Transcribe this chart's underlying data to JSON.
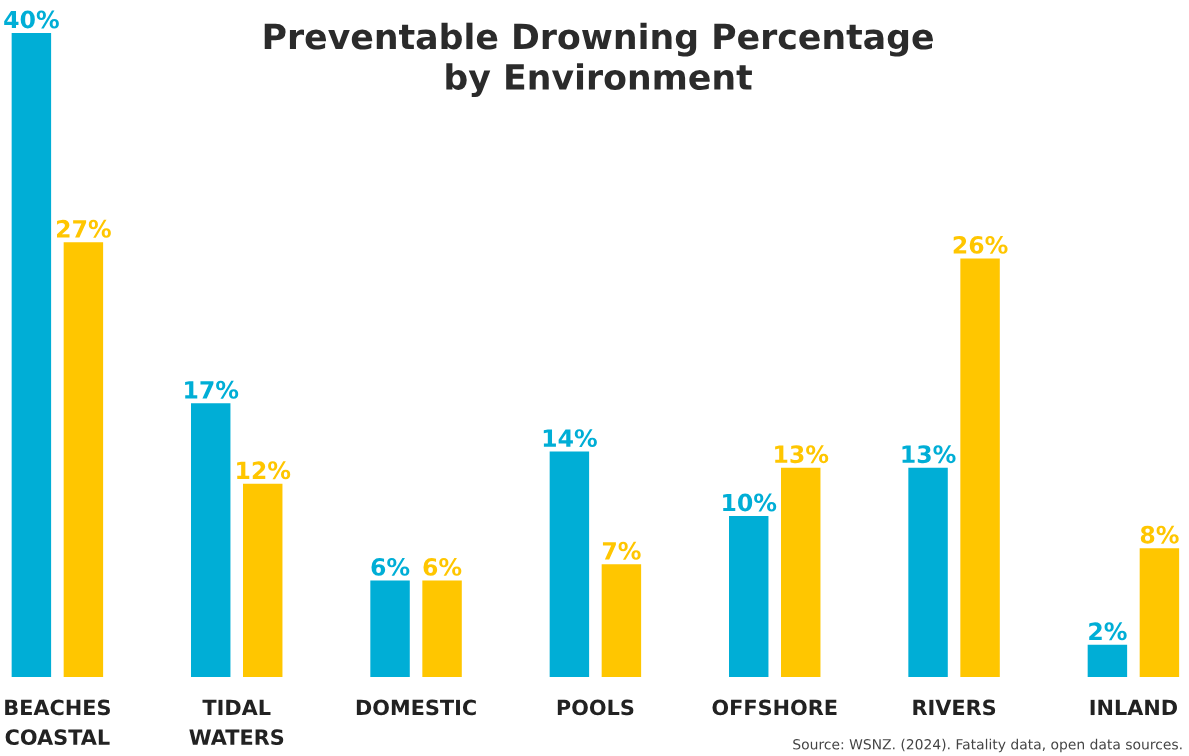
{
  "chart_data": {
    "type": "bar",
    "title": "Preventable Drowning Percentage\nby Environment",
    "categories": [
      "BEACHES\nCOASTAL",
      "TIDAL\nWATERS",
      "DOMESTIC",
      "POOLS",
      "OFFSHORE",
      "RIVERS",
      "INLAND"
    ],
    "series": [
      {
        "color": "#00aed6",
        "values": [
          40,
          17,
          6,
          14,
          10,
          13,
          2
        ],
        "value_labels": [
          "40%",
          "17%",
          "6%",
          "14%",
          "10%",
          "13%",
          "2%"
        ]
      },
      {
        "color": "#ffc600",
        "values": [
          27,
          12,
          6,
          7,
          13,
          26,
          8
        ],
        "value_labels": [
          "27%",
          "12%",
          "6%",
          "7%",
          "13%",
          "26%",
          "8%"
        ]
      }
    ],
    "annotations": [
      "Source: WSNZ. (2024). Fatality data, open data sources."
    ]
  }
}
